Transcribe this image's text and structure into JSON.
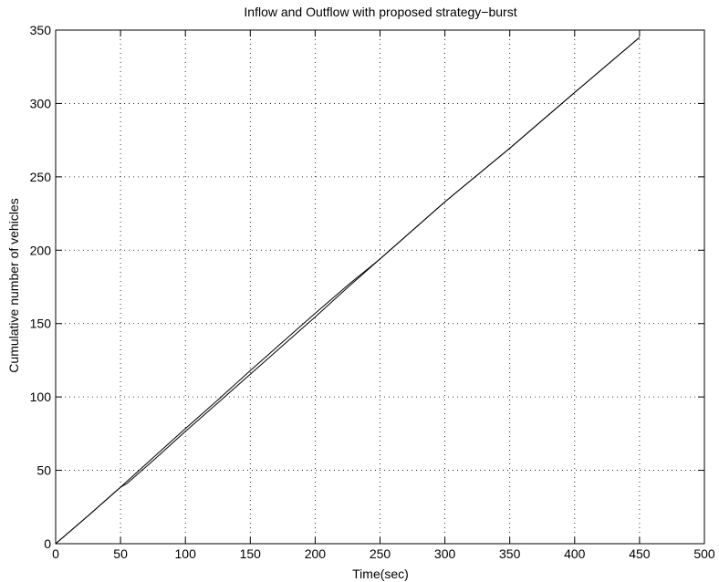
{
  "chart_data": {
    "type": "line",
    "title": "Inflow and Outflow with proposed strategy−burst",
    "xlabel": "Time(sec)",
    "ylabel": "Cumulative number of vehicles",
    "xlim": [
      0,
      500
    ],
    "ylim": [
      0,
      350
    ],
    "xticks": [
      0,
      50,
      100,
      150,
      200,
      250,
      300,
      350,
      400,
      450,
      500
    ],
    "yticks": [
      0,
      50,
      100,
      150,
      200,
      250,
      300,
      350
    ],
    "xtick_labels": [
      "0",
      "50",
      "100",
      "150",
      "200",
      "250",
      "300",
      "350",
      "400",
      "450",
      "500"
    ],
    "ytick_labels": [
      "0",
      "50",
      "100",
      "150",
      "200",
      "250",
      "300",
      "350"
    ],
    "grid": true,
    "line_color": "#000000",
    "series": [
      {
        "x": [
          0,
          25,
          50,
          55,
          75,
          100,
          125,
          150,
          175,
          200,
          225,
          250,
          300,
          350,
          400,
          450
        ],
        "y": [
          0,
          19,
          38.5,
          42.5,
          58.5,
          78.5,
          98,
          118,
          137.5,
          157,
          176,
          194,
          233,
          269.5,
          307.5,
          345
        ]
      },
      {
        "x": [
          0,
          25,
          50,
          55,
          75,
          100,
          125,
          150,
          175,
          200,
          225,
          250,
          300,
          350,
          400,
          450
        ],
        "y": [
          0,
          19,
          38.5,
          41,
          56.5,
          76.5,
          96,
          115.5,
          135,
          154.5,
          174.5,
          194,
          233,
          269.5,
          307.5,
          345
        ]
      }
    ]
  }
}
